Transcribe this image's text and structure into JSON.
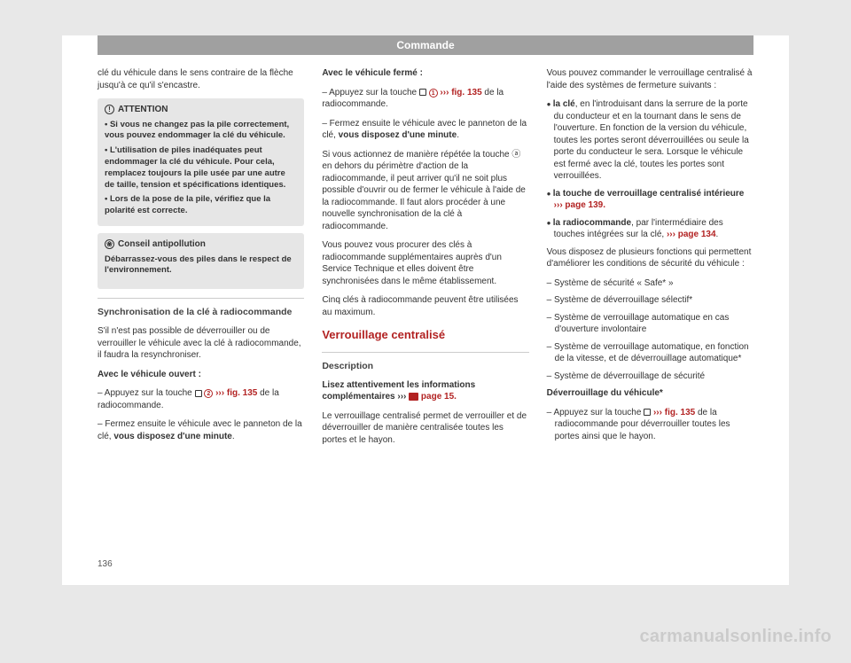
{
  "header": {
    "title": "Commande"
  },
  "page_number": "136",
  "watermark": "carmanualsonline.info",
  "col1": {
    "intro": "clé du véhicule dans le sens contraire de la flèche jusqu'à ce qu'il s'encastre.",
    "attention": {
      "title": "ATTENTION",
      "items": [
        "Si vous ne changez pas la pile correctement, vous pouvez endommager la clé du véhicule.",
        "L'utilisation de piles inadéquates peut endommager la clé du véhicule. Pour cela, remplacez toujours la pile usée par une autre de taille, tension et spécifications identiques.",
        "Lors de la pose de la pile, vérifiez que la polarité est correcte."
      ]
    },
    "conseil": {
      "title": "Conseil antipollution",
      "text": "Débarrassez-vous des piles dans le respect de l'environnement."
    },
    "sync_head": "Synchronisation de la clé à radiocommande",
    "sync_p1": "S'il n'est pas possible de déverrouiller ou de verrouiller le véhicule avec la clé à radiocommande, il faudra la resynchroniser.",
    "open_title": "Avec le véhicule ouvert :",
    "open_items": {
      "a1": "– Appuyez sur la touche ",
      "a2": " ››› ",
      "a3": "fig. 135",
      "a4": " de la radiocommande.",
      "b1": "– Fermez ensuite le véhicule avec le panneton de la clé, ",
      "b2": "vous disposez d'une minute",
      "b3": "."
    }
  },
  "col2": {
    "closed_title": "Avec le véhicule fermé :",
    "closed_items": {
      "a1": "– Appuyez sur la touche ",
      "a2": " ››› ",
      "a3": "fig. 135",
      "a4": " de la radiocommande.",
      "b1": "– Fermez ensuite le véhicule avec le panneton de la clé, ",
      "b2": "vous disposez d'une minute",
      "b3": "."
    },
    "p1": "Si vous actionnez de manière répétée la touche ⓐ en dehors du périmètre d'action de la radiocommande, il peut arriver qu'il ne soit plus possible d'ouvrir ou de fermer le véhicule à l'aide de la radiocommande. Il faut alors procéder à une nouvelle synchronisation de la clé à radiocommande.",
    "p2": "Vous pouvez vous procurer des clés à radiocommande supplémentaires auprès d'un Service Technique et elles doivent être synchronisées dans le même établissement.",
    "p3": "Cinq clés à radiocommande peuvent être utilisées au maximum.",
    "red_head": "Verrouillage centralisé",
    "desc_head": "Description",
    "desc_p1a": "Lisez attentivement les informations complémentaires ››› ",
    "desc_p1b": " page 15.",
    "desc_p2": "Le verrouillage centralisé permet de verrouiller et de déverrouiller de manière centralisée toutes les portes et le hayon."
  },
  "col3": {
    "p1": "Vous pouvez commander le verrouillage centralisé à l'aide des systèmes de fermeture suivants :",
    "bullets": {
      "a1": "la clé",
      "a2": ", en l'introduisant dans la serrure de la porte du conducteur et en la tournant dans le sens de l'ouverture. En fonction de la version du véhicule, toutes les portes seront déverrouillées ou seule la porte du conducteur le sera. Lorsque le véhicule est fermé avec la clé, toutes les portes sont verrouillées.",
      "b1": "la touche de verrouillage centralisé intérieure",
      "b2": " ››› page 139.",
      "c1": "la radiocommande",
      "c2": ", par l'intermédiaire des touches intégrées sur la clé, ",
      "c3": "››› page 134",
      "c4": "."
    },
    "p2": "Vous disposez de plusieurs fonctions qui permettent d'améliorer les conditions de sécurité du véhicule :",
    "dashes": [
      "Système de sécurité « Safe* »",
      "Système de déverrouillage sélectif*",
      "Système de verrouillage automatique en cas d'ouverture involontaire",
      "Système de verrouillage automatique, en fonction de la vitesse, et de déverrouillage automatique*",
      "Système de déverrouillage de sécurité"
    ],
    "unlock_head": "Déverrouillage du véhicule*",
    "unlock_a": "Appuyez sur la touche ",
    "unlock_b": "››› fig. 135",
    "unlock_c": " de la radiocommande pour déverrouiller toutes les portes ainsi que le hayon."
  }
}
